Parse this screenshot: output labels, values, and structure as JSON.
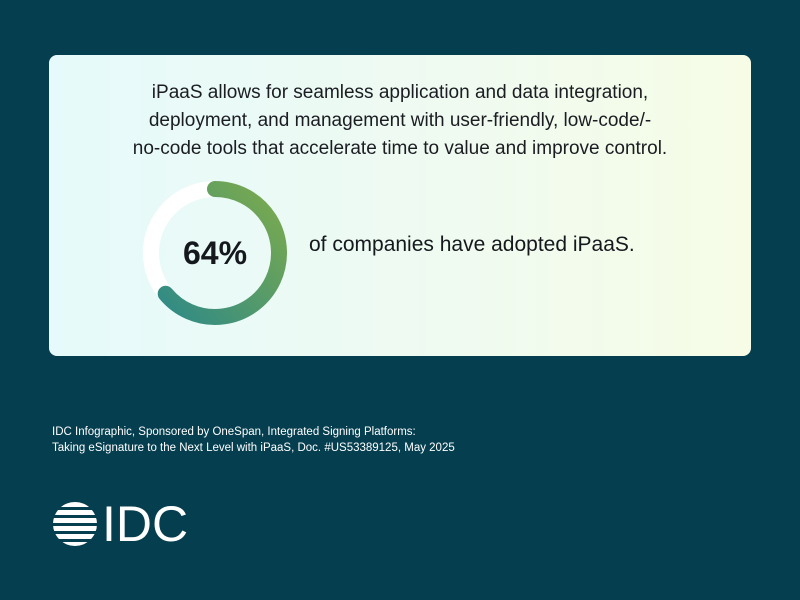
{
  "card": {
    "headline_lines": [
      "iPaaS allows for seamless application and data integration,",
      "deployment, and management with user-friendly, low-code/-",
      "no-code tools that accelerate time to value and improve control."
    ],
    "stat_value": "64%",
    "stat_fraction": 0.64,
    "stat_text": "of companies have adopted iPaaS."
  },
  "colors": {
    "background": "#053e4f",
    "ring_start": "#2f8a86",
    "ring_end": "#7dab4c",
    "ring_track": "#ffffff"
  },
  "source": {
    "lines": [
      "IDC Infographic, Sponsored by OneSpan, Integrated Signing Platforms:",
      "Taking eSignature to the Next Level with iPaaS, Doc. #US53389125, May 2025"
    ]
  },
  "logo": {
    "text": "IDC",
    "icon": "idc-globe-icon"
  }
}
